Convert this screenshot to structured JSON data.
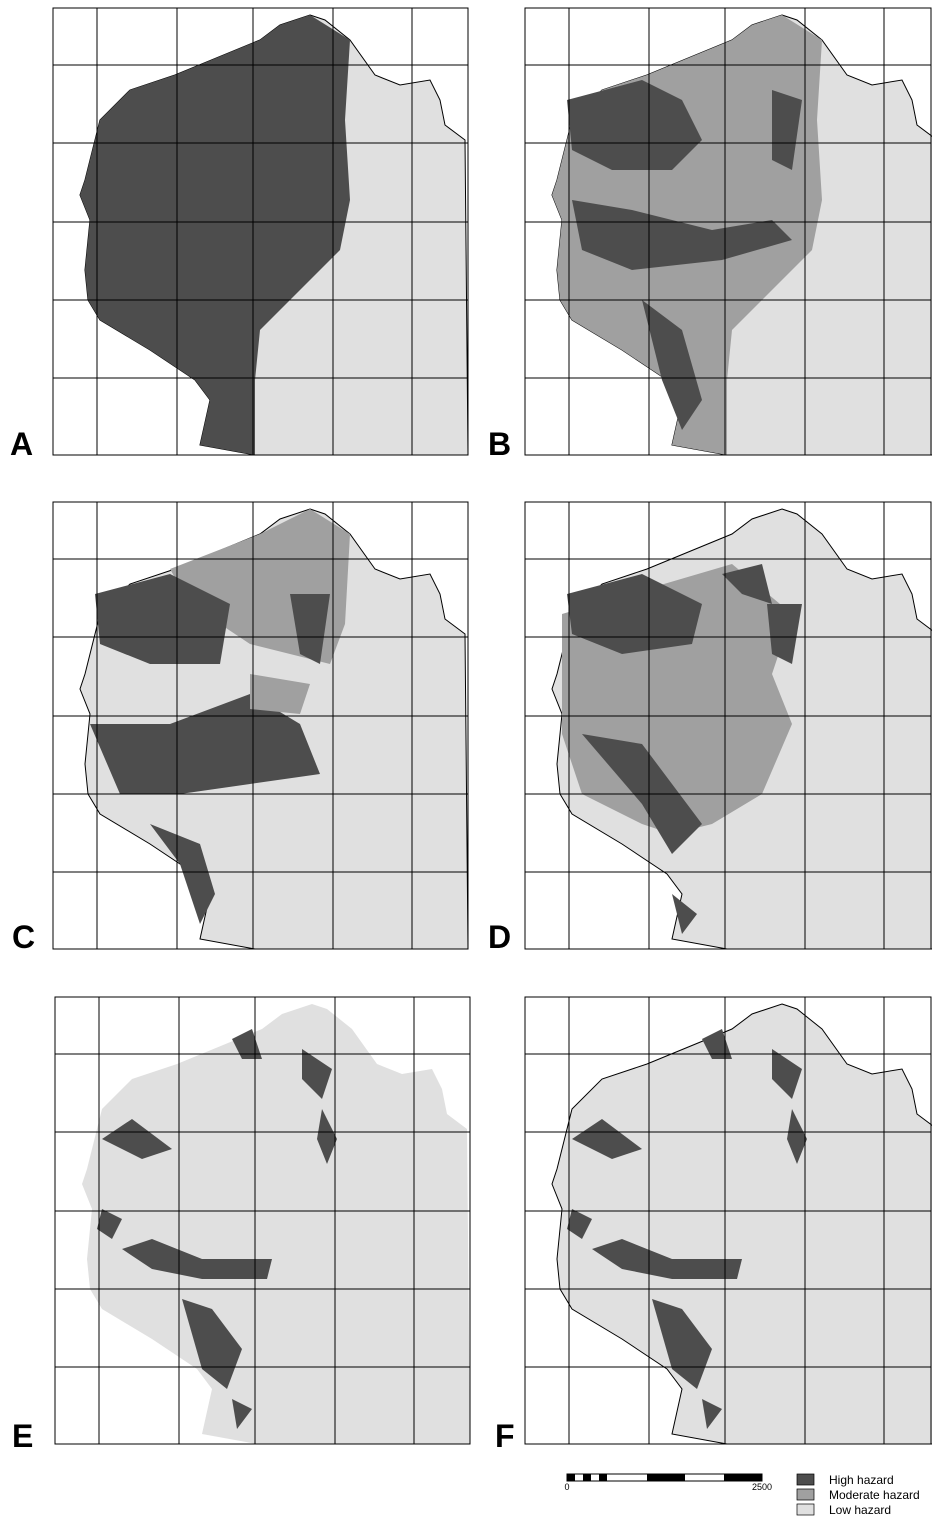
{
  "panels": [
    {
      "label": "A"
    },
    {
      "label": "B"
    },
    {
      "label": "C"
    },
    {
      "label": "D"
    },
    {
      "label": "E"
    },
    {
      "label": "F"
    }
  ],
  "scale_bar": {
    "start_label": "0",
    "end_label": "2500"
  },
  "legend": {
    "items": [
      {
        "label": "High hazard",
        "color": "#4d4d4d"
      },
      {
        "label": "Moderate hazard",
        "color": "#a0a0a0"
      },
      {
        "label": "Low hazard",
        "color": "#e0e0e0"
      }
    ]
  }
}
